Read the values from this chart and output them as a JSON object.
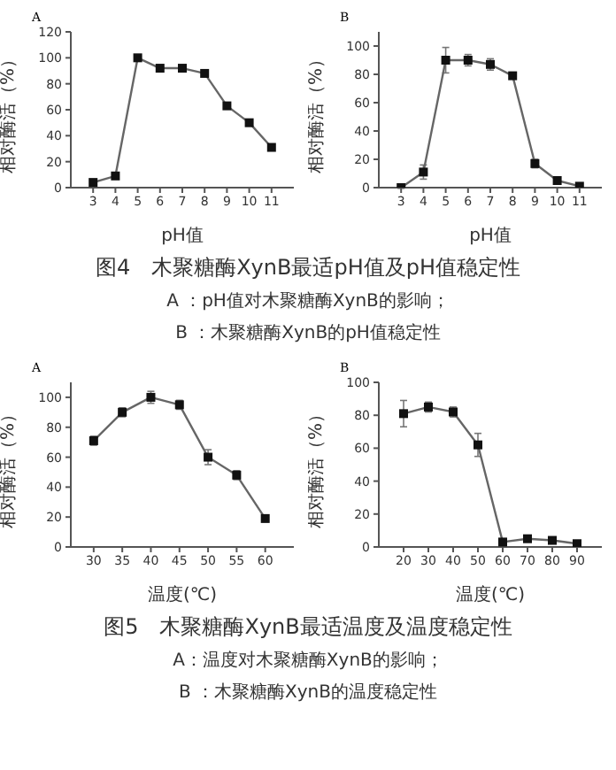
{
  "chart_data": [
    {
      "type": "line",
      "title": "A",
      "xlabel": "pH值",
      "ylabel": "相对酶活（%）",
      "x": [
        3,
        4,
        5,
        6,
        7,
        8,
        9,
        10,
        11
      ],
      "values": [
        4,
        9,
        100,
        92,
        92,
        88,
        63,
        50,
        31
      ],
      "errors": [
        1,
        1,
        2,
        2,
        2,
        2,
        2,
        2,
        2
      ],
      "color": "#666666",
      "marker": "square",
      "xlim": [
        2,
        12
      ],
      "xticks": [
        3,
        4,
        5,
        6,
        7,
        8,
        9,
        10,
        11
      ],
      "ylim": [
        0,
        120
      ],
      "yticks": [
        0,
        20,
        40,
        60,
        80,
        100,
        120
      ]
    },
    {
      "type": "line",
      "title": "B",
      "xlabel": "pH值",
      "ylabel": "相对酶活（%）",
      "x": [
        3,
        4,
        5,
        6,
        7,
        8,
        9,
        10,
        11
      ],
      "values": [
        0,
        11,
        90,
        90,
        87,
        79,
        17,
        5,
        1
      ],
      "errors": [
        0.5,
        5,
        9,
        4,
        4,
        2,
        3,
        1,
        1
      ],
      "color": "#666666",
      "marker": "square",
      "xlim": [
        2,
        12
      ],
      "xticks": [
        3,
        4,
        5,
        6,
        7,
        8,
        9,
        10,
        11
      ],
      "ylim": [
        0,
        110
      ],
      "yticks": [
        0,
        20,
        40,
        60,
        80,
        100
      ],
      "annotations": [
        "图4　木聚糖酶XynB最适pH值及pH值稳定性",
        "A ：pH值对木聚糖酶XynB的影响；",
        "B ：木聚糖酶XynB的pH值稳定性"
      ]
    },
    {
      "type": "line",
      "title": "A",
      "xlabel": "温度(℃)",
      "ylabel": "相对酶活（%）",
      "x": [
        30,
        35,
        40,
        45,
        50,
        55,
        60
      ],
      "values": [
        71,
        90,
        100,
        95,
        60,
        48,
        19
      ],
      "errors": [
        3,
        3,
        4,
        3,
        5,
        3,
        2
      ],
      "color": "#666666",
      "marker": "square",
      "xlim": [
        26,
        65
      ],
      "xticks": [
        30,
        35,
        40,
        45,
        50,
        55,
        60
      ],
      "ylim": [
        0,
        110
      ],
      "yticks": [
        0,
        20,
        40,
        60,
        80,
        100
      ]
    },
    {
      "type": "line",
      "title": "B",
      "xlabel": "温度(℃)",
      "ylabel": "相对酶活（%）",
      "x": [
        20,
        30,
        40,
        50,
        60,
        70,
        80,
        90
      ],
      "values": [
        81,
        85,
        82,
        62,
        3,
        5,
        4,
        2
      ],
      "errors": [
        8,
        3,
        3,
        7,
        1,
        1,
        1,
        1
      ],
      "color": "#666666",
      "marker": "square",
      "xlim": [
        10,
        100
      ],
      "xticks": [
        20,
        30,
        40,
        50,
        60,
        70,
        80,
        90
      ],
      "ylim": [
        0,
        100
      ],
      "yticks": [
        0,
        20,
        40,
        60,
        80,
        100
      ],
      "annotations": [
        "图5　木聚糖酶XynB最适温度及温度稳定性",
        "A：温度对木聚糖酶XynB的影响；",
        "B ：木聚糖酶XynB的温度稳定性"
      ]
    }
  ]
}
